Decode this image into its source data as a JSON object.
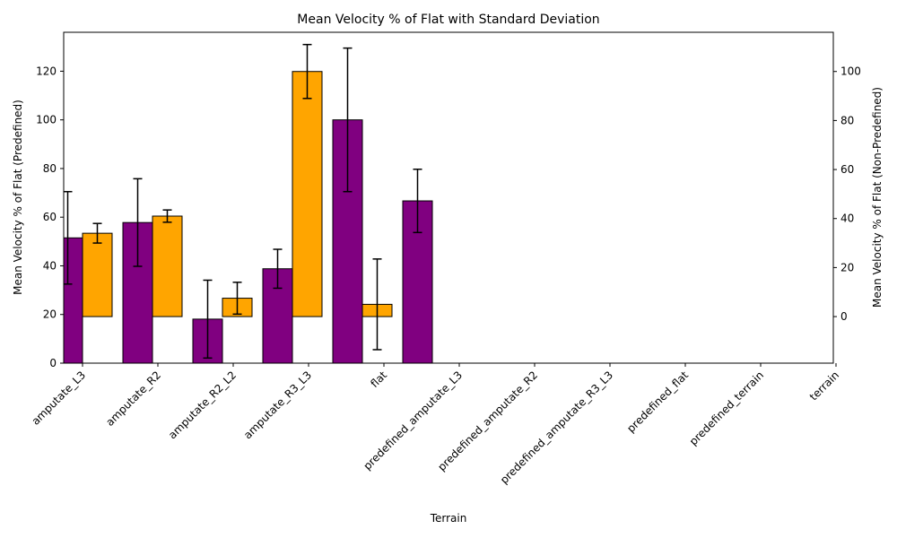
{
  "chart_data": {
    "type": "bar",
    "title": "Mean Velocity % of Flat with Standard Deviation",
    "xlabel": "Terrain",
    "ylabel_left": "Mean Velocity % of Flat (Predefined)",
    "ylabel_right": "Mean Velocity % of Flat (Non-Predefined)",
    "categories": [
      "amputate_L3",
      "amputate_R2",
      "amputate_R2_L2",
      "amputate_R3_L3",
      "flat",
      "predefined_amputate_L3",
      "predefined_amputate_R2",
      "predefined_amputate_R3_L3",
      "predefined_flat",
      "predefined_terrain",
      "terrain"
    ],
    "left_axis": {
      "ylim": [
        0,
        136
      ],
      "ticks": [
        0,
        20,
        40,
        60,
        80,
        100,
        120
      ]
    },
    "right_axis": {
      "ylim": [
        -19,
        116
      ],
      "ticks": [
        0,
        20,
        40,
        60,
        80,
        100
      ]
    },
    "series": [
      {
        "color": "#800080",
        "axis": "left",
        "values": [
          51.5,
          57.8,
          18.1,
          38.8,
          100.0,
          66.7,
          null,
          null,
          null,
          null,
          null
        ],
        "errors": [
          19.0,
          18.0,
          16.0,
          8.0,
          29.5,
          13.0,
          null,
          null,
          null,
          null,
          null
        ]
      },
      {
        "color": "#FFA500",
        "axis": "right",
        "values": [
          34.0,
          41.0,
          7.5,
          100.0,
          5.0,
          null,
          null,
          null,
          null,
          null,
          null
        ],
        "errors": [
          4.0,
          2.5,
          6.5,
          11.0,
          18.5,
          null,
          null,
          null,
          null,
          null,
          null
        ]
      }
    ]
  }
}
